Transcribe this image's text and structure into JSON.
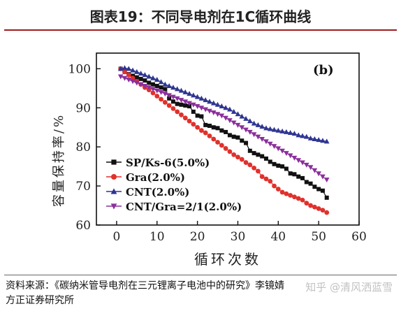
{
  "header": {
    "title": "图表19：不同导电剂在1C循环曲线"
  },
  "footer": {
    "source_line1": "资料来源：《碳纳米管导电剂在三元锂离子电池中的研究》李镜婧",
    "source_line2": "方正证券研究所",
    "watermark": "知乎 @清风洒蓝雪"
  },
  "colors": {
    "black_series": "#111111",
    "red_series": "#e0312b",
    "blue_series": "#2e3590",
    "purple_series": "#8b2f9c",
    "rule": "#9c1c1c"
  },
  "chart_data": {
    "type": "line",
    "panel_label": "(b)",
    "xlabel": "循环次数",
    "ylabel": "容量保持率/%",
    "xlim": [
      -5,
      60
    ],
    "ylim": [
      60,
      104
    ],
    "xticks": [
      0,
      10,
      20,
      30,
      40,
      50,
      60
    ],
    "yticks": [
      60,
      70,
      80,
      90,
      100
    ],
    "grid": false,
    "legend_position": "bottom-left",
    "series": [
      {
        "name": "SP/Ks-6(5.0%)",
        "marker": "square",
        "color": "#111111",
        "x": [
          1,
          2,
          3,
          4,
          5,
          6,
          7,
          8,
          9,
          10,
          11,
          12,
          13,
          14,
          15,
          16,
          17,
          18,
          19,
          20,
          21,
          22,
          23,
          24,
          25,
          26,
          27,
          28,
          29,
          30,
          31,
          32,
          33,
          34,
          35,
          36,
          37,
          38,
          39,
          40,
          41,
          42,
          43,
          44,
          45,
          46,
          47,
          48,
          49,
          50,
          51,
          52
        ],
        "y": [
          100,
          99.2,
          98.6,
          98.2,
          97.8,
          97.4,
          97.0,
          96.4,
          96.0,
          95.6,
          95.2,
          94.8,
          92.4,
          91.6,
          91.0,
          90.8,
          90.6,
          90.4,
          89.0,
          88.0,
          87.8,
          85.6,
          85.4,
          85.0,
          84.8,
          84.2,
          83.8,
          83.0,
          82.6,
          82.4,
          81.6,
          81.0,
          79.0,
          78.4,
          78.0,
          77.6,
          77.0,
          76.2,
          75.6,
          75.2,
          75.0,
          74.4,
          73.2,
          73.0,
          72.4,
          72.0,
          71.0,
          70.6,
          69.8,
          69.2,
          68.8,
          67.0
        ]
      },
      {
        "name": "Gra(2.0%)",
        "marker": "circle",
        "color": "#e0312b",
        "x": [
          1,
          2,
          3,
          4,
          5,
          6,
          7,
          8,
          9,
          10,
          11,
          12,
          13,
          14,
          15,
          16,
          17,
          18,
          19,
          20,
          21,
          22,
          23,
          24,
          25,
          26,
          27,
          28,
          29,
          30,
          31,
          32,
          33,
          34,
          35,
          36,
          37,
          38,
          39,
          40,
          41,
          42,
          43,
          44,
          45,
          46,
          47,
          48,
          49,
          50,
          51,
          52
        ],
        "y": [
          100,
          99.2,
          98.4,
          97.6,
          96.8,
          96.0,
          95.2,
          94.6,
          93.8,
          93.0,
          92.2,
          91.4,
          90.6,
          89.8,
          89.0,
          88.2,
          87.4,
          86.6,
          85.8,
          85.0,
          84.2,
          83.6,
          82.8,
          82.0,
          81.2,
          80.4,
          79.6,
          78.8,
          78.0,
          77.4,
          76.8,
          76.0,
          75.4,
          74.6,
          73.8,
          72.4,
          71.8,
          71.2,
          70.0,
          69.2,
          68.4,
          68.0,
          67.6,
          67.2,
          66.8,
          66.4,
          65.6,
          65.0,
          64.6,
          64.2,
          63.8,
          63.2
        ]
      },
      {
        "name": "CNT(2.0%)",
        "marker": "triangle-up",
        "color": "#2e3590",
        "x": [
          1,
          2,
          3,
          4,
          5,
          6,
          7,
          8,
          9,
          10,
          11,
          12,
          13,
          14,
          15,
          16,
          17,
          18,
          19,
          20,
          21,
          22,
          23,
          24,
          25,
          26,
          27,
          28,
          29,
          30,
          31,
          32,
          33,
          34,
          35,
          36,
          37,
          38,
          39,
          40,
          41,
          42,
          43,
          44,
          45,
          46,
          47,
          48,
          49,
          50,
          51,
          52
        ],
        "y": [
          100,
          100.2,
          100.0,
          99.6,
          99.2,
          98.8,
          98.4,
          98.0,
          97.6,
          97.2,
          96.6,
          96.0,
          95.6,
          95.2,
          94.8,
          94.4,
          94.0,
          93.6,
          93.2,
          92.8,
          92.4,
          92.0,
          91.6,
          91.2,
          90.8,
          90.4,
          90.0,
          89.6,
          89.0,
          88.4,
          87.8,
          87.2,
          86.6,
          86.0,
          85.6,
          85.2,
          84.8,
          84.6,
          84.4,
          84.2,
          84.0,
          83.8,
          83.6,
          83.4,
          83.0,
          82.8,
          82.6,
          82.2,
          82.0,
          81.8,
          81.6,
          81.4
        ]
      },
      {
        "name": "CNT/Gra=2/1(2.0%)",
        "marker": "triangle-down",
        "color": "#8b2f9c",
        "x": [
          1,
          2,
          3,
          4,
          5,
          6,
          7,
          8,
          9,
          10,
          11,
          12,
          13,
          14,
          15,
          16,
          17,
          18,
          19,
          20,
          21,
          22,
          23,
          24,
          25,
          26,
          27,
          28,
          29,
          30,
          31,
          32,
          33,
          34,
          35,
          36,
          37,
          38,
          39,
          40,
          41,
          42,
          43,
          44,
          45,
          46,
          47,
          48,
          49,
          50,
          51,
          52
        ],
        "y": [
          98.0,
          97.6,
          97.2,
          96.8,
          96.4,
          96.0,
          95.6,
          95.2,
          94.8,
          94.4,
          94.0,
          93.6,
          93.2,
          92.8,
          92.4,
          92.0,
          91.6,
          91.2,
          90.8,
          90.4,
          90.0,
          89.6,
          89.2,
          88.8,
          88.4,
          88.0,
          87.4,
          86.8,
          86.2,
          85.6,
          85.0,
          84.4,
          83.8,
          83.2,
          82.6,
          82.0,
          81.4,
          80.8,
          80.2,
          79.6,
          79.0,
          78.4,
          77.8,
          77.2,
          76.6,
          76.0,
          75.4,
          74.8,
          74.0,
          73.2,
          72.4,
          71.6
        ]
      }
    ]
  }
}
